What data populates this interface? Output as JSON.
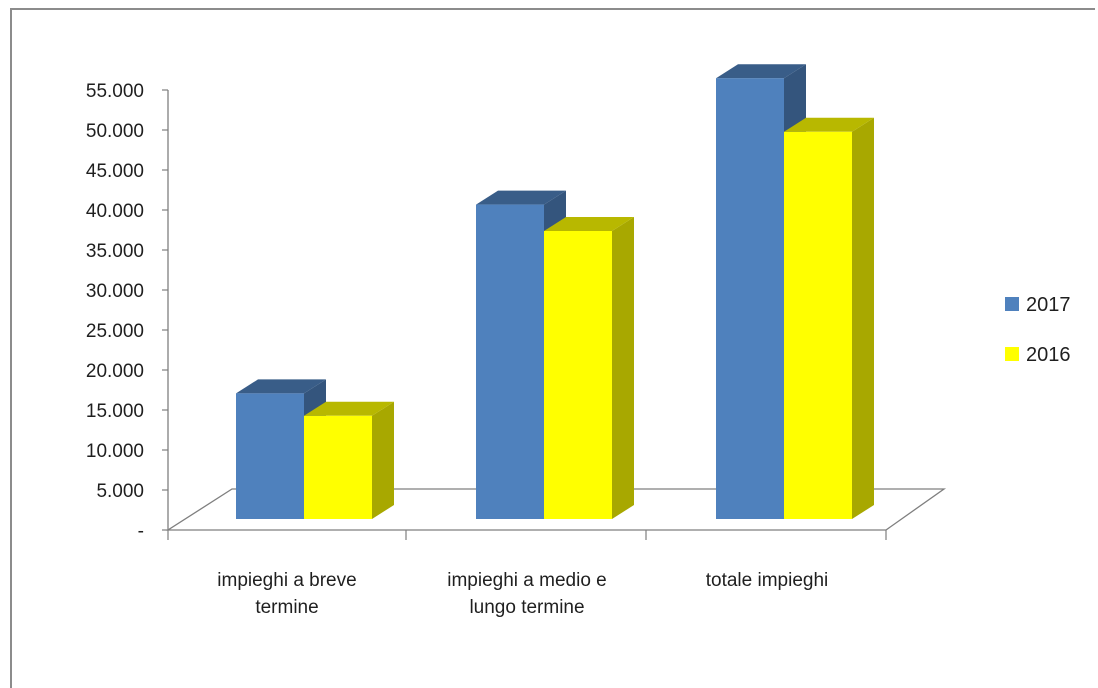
{
  "chart_data": {
    "type": "bar",
    "three_d": true,
    "categories": [
      [
        "impieghi a breve",
        "termine"
      ],
      [
        "impieghi a medio e",
        "lungo termine"
      ],
      [
        "totale impieghi"
      ]
    ],
    "series": [
      {
        "name": "2017",
        "color": "#4f81bd",
        "values": [
          15700,
          39300,
          55100
        ]
      },
      {
        "name": "2016",
        "color": "#ffff00",
        "values": [
          12900,
          36000,
          48400
        ]
      }
    ],
    "yticks": [
      "-",
      "5.000",
      "10.000",
      "15.000",
      "20.000",
      "25.000",
      "30.000",
      "35.000",
      "40.000",
      "45.000",
      "50.000",
      "55.000"
    ],
    "ylim": [
      0,
      55000
    ],
    "grid": false,
    "legend": "right"
  }
}
